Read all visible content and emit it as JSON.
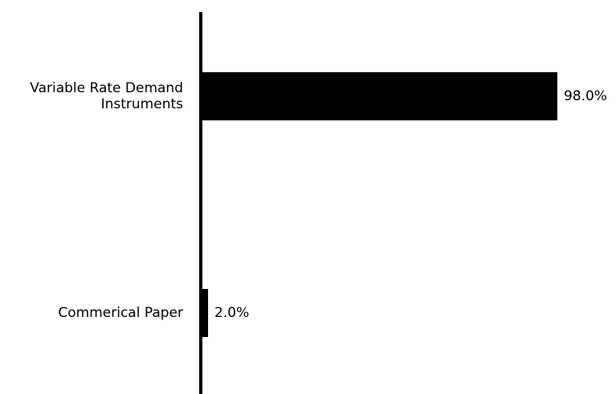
{
  "chart_data": {
    "type": "bar",
    "orientation": "horizontal",
    "categories": [
      [
        "Variable Rate Demand",
        "Instruments"
      ],
      [
        "Commerical Paper"
      ]
    ],
    "values": [
      98.0,
      2.0
    ],
    "value_labels": [
      "98.0%",
      "2.0%"
    ],
    "xlim": [
      0,
      100
    ],
    "title": "",
    "xlabel": "",
    "ylabel": "",
    "grid": false,
    "legend": "none",
    "bar_color": "#000000"
  }
}
